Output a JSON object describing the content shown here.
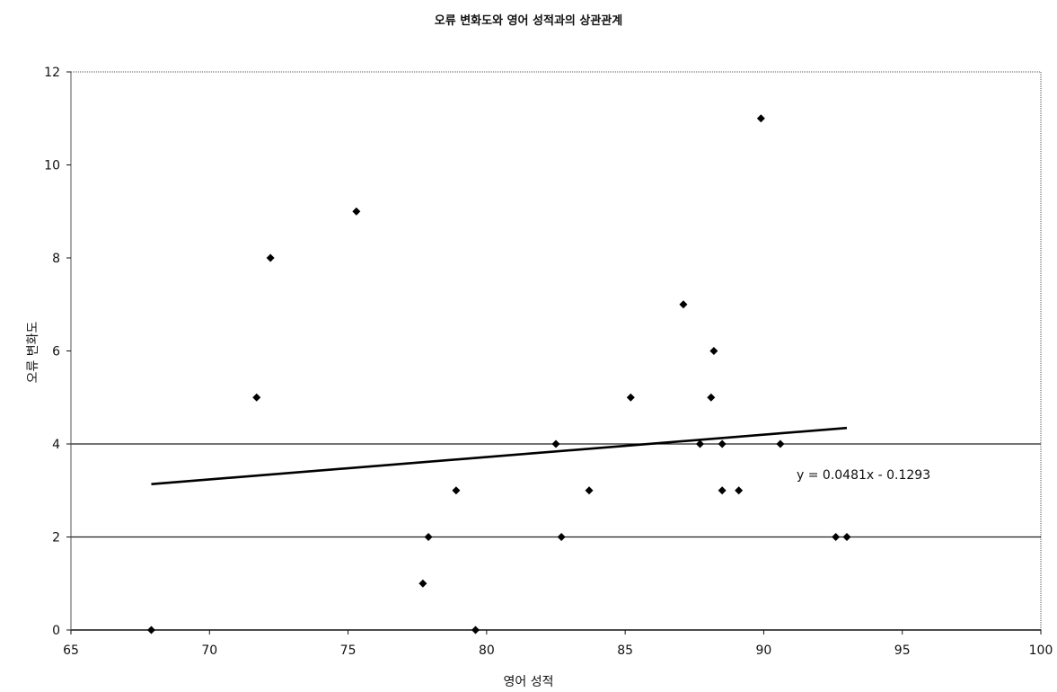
{
  "chart_data": {
    "type": "scatter",
    "title": "오류 변화도와 영어 성적과의 상관관계",
    "xlabel": "영어 성적",
    "ylabel": "오류 변화도",
    "xlim": [
      65,
      100
    ],
    "ylim": [
      0,
      12
    ],
    "xticks": [
      65,
      70,
      75,
      80,
      85,
      90,
      95,
      100
    ],
    "yticks": [
      0,
      2,
      4,
      6,
      8,
      10,
      12
    ],
    "horizontal_gridlines": [
      2,
      4
    ],
    "series": [
      {
        "points": [
          [
            67.9,
            0
          ],
          [
            71.7,
            5
          ],
          [
            72.2,
            8
          ],
          [
            75.3,
            9
          ],
          [
            77.7,
            1
          ],
          [
            77.9,
            2
          ],
          [
            78.9,
            3
          ],
          [
            79.6,
            0
          ],
          [
            82.5,
            4
          ],
          [
            82.7,
            2
          ],
          [
            83.7,
            3
          ],
          [
            85.2,
            5
          ],
          [
            87.1,
            7
          ],
          [
            87.7,
            4
          ],
          [
            88.1,
            5
          ],
          [
            88.2,
            6
          ],
          [
            88.5,
            3
          ],
          [
            88.5,
            4
          ],
          [
            89.1,
            3
          ],
          [
            89.9,
            11
          ],
          [
            90.6,
            4
          ],
          [
            92.6,
            2
          ],
          [
            93.0,
            2
          ]
        ]
      }
    ],
    "trendline": {
      "label": "y = 0.0481x - 0.1293",
      "slope": 0.0481,
      "intercept": -0.1293,
      "x_range": [
        67.9,
        93.0
      ]
    }
  }
}
